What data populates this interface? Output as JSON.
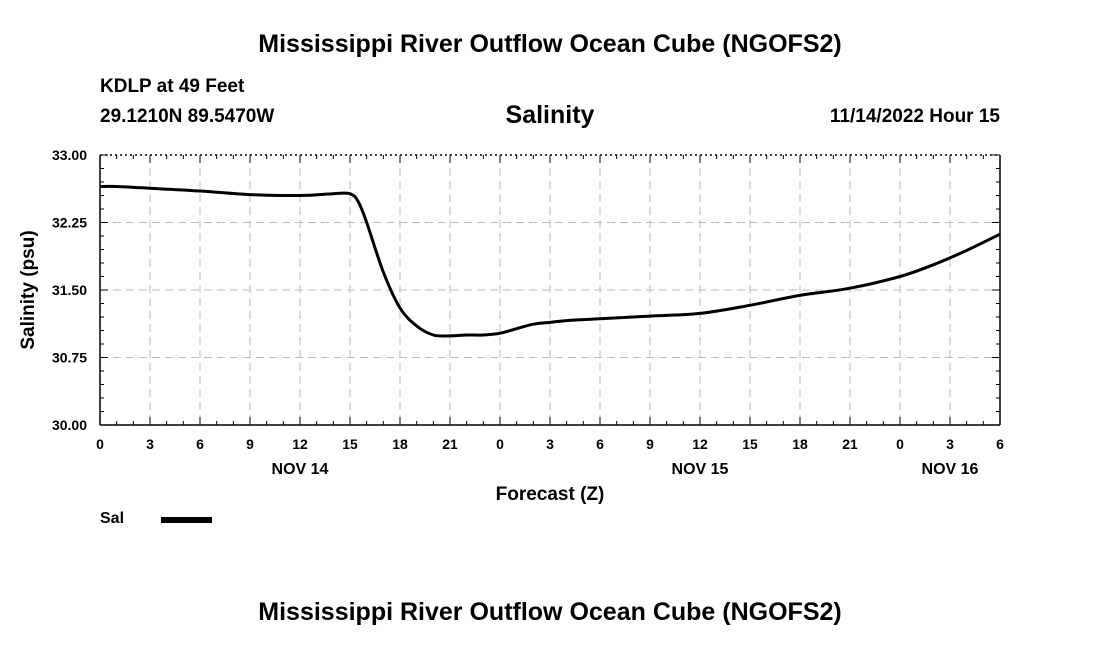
{
  "header": {
    "title": "Mississippi River Outflow Ocean Cube (NGOFS2)",
    "station": "KDLP at 49 Feet",
    "coords": "29.1210N  89.5470W",
    "variable": "Salinity",
    "datetime": "11/14/2022 Hour 15"
  },
  "legend": {
    "label": "Sal",
    "color": "#000000"
  },
  "footer": {
    "title": "Mississippi River Outflow Ocean Cube (NGOFS2)"
  },
  "chart_data": {
    "type": "line",
    "title": "Salinity",
    "xlabel": "Forecast (Z)",
    "ylabel": "Salinity (psu)",
    "ylim": [
      30.0,
      33.0
    ],
    "yticks": [
      "30.00",
      "30.75",
      "31.50",
      "32.25",
      "33.00"
    ],
    "xlim_hours": [
      0,
      54
    ],
    "xticks": [
      "0",
      "3",
      "6",
      "9",
      "12",
      "15",
      "18",
      "21",
      "0",
      "3",
      "6",
      "9",
      "12",
      "15",
      "18",
      "21",
      "0",
      "3",
      "6"
    ],
    "day_labels": [
      {
        "label": "NOV 14",
        "hour": 12
      },
      {
        "label": "NOV 15",
        "hour": 36
      },
      {
        "label": "NOV 16",
        "hour": 51
      }
    ],
    "grid": true,
    "series": [
      {
        "name": "Sal",
        "color": "#000000",
        "x": [
          0,
          1,
          3,
          6,
          9,
          12,
          14,
          15,
          15.5,
          16,
          17,
          18,
          19,
          20,
          21,
          22,
          23,
          24,
          25,
          26,
          27,
          28,
          30,
          33,
          36,
          39,
          42,
          45,
          48,
          50,
          52,
          54
        ],
        "values": [
          32.65,
          32.65,
          32.63,
          32.6,
          32.56,
          32.55,
          32.57,
          32.57,
          32.48,
          32.25,
          31.7,
          31.3,
          31.1,
          31.0,
          30.99,
          31.0,
          31.0,
          31.02,
          31.07,
          31.12,
          31.14,
          31.16,
          31.18,
          31.21,
          31.24,
          31.33,
          31.44,
          31.52,
          31.65,
          31.78,
          31.94,
          32.12
        ]
      }
    ]
  }
}
